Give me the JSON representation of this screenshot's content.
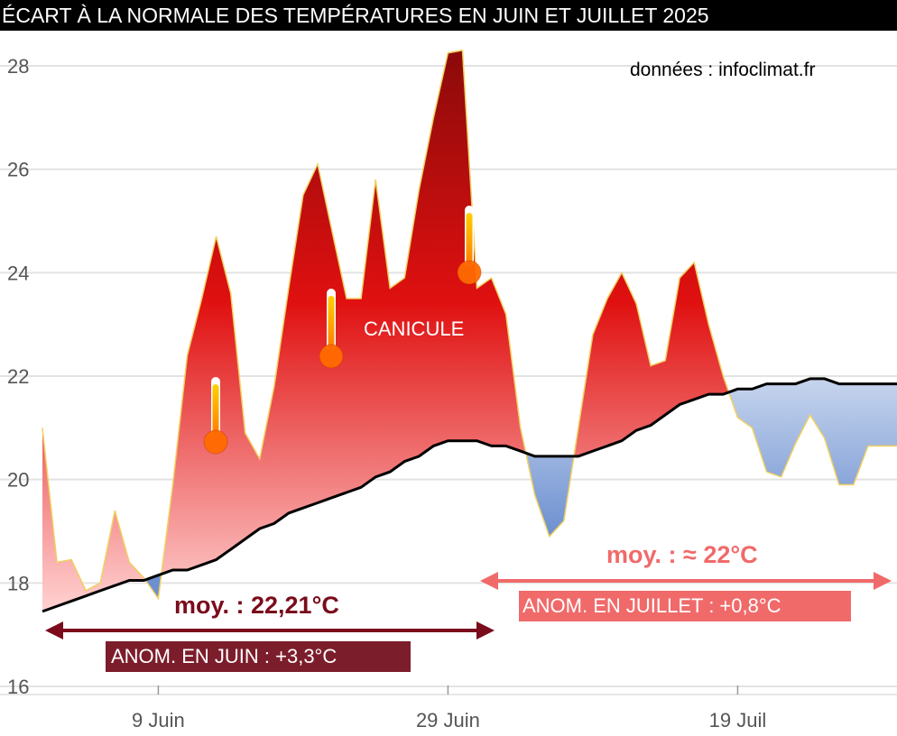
{
  "header": {
    "title": "ÉCART À LA NORMALE DES TEMPÉRATURES EN JUIN ET JUILLET 2025"
  },
  "source_label": "données : infoclimat.fr",
  "annotations": {
    "canicule": "CANICULE",
    "june_avg": "moy. : 22,21°C",
    "june_anomaly": "ANOM. EN JUIN : +3,3°C",
    "july_avg": "moy. : ≈ 22°C",
    "july_anomaly": "ANOM. EN JUILLET : +0,8°C"
  },
  "colors": {
    "hot_dark": "#8b0a0a",
    "hot_mid": "#e01010",
    "hot_light": "#ffd0d0",
    "cold_dark": "#6c8fd0",
    "cold_light": "#c8d6ee",
    "outline": "#f0d060",
    "normal_line": "#000000",
    "june_arrow": "#7a0c1c",
    "july_arrow": "#f06a6a",
    "thermometer_bulb": "#ff6a00"
  },
  "chart_data": {
    "type": "area",
    "title": "ÉCART À LA NORMALE DES TEMPÉRATURES EN JUIN ET JUILLET 2025",
    "xlabel": "",
    "ylabel": "",
    "ylim": [
      16,
      28.6
    ],
    "yticks": [
      16,
      18,
      20,
      22,
      24,
      26,
      28
    ],
    "xticks": [
      {
        "day": 9,
        "label": "9 Juin"
      },
      {
        "day": 29,
        "label": "29 Juin"
      },
      {
        "day": 49,
        "label": "19 Juil"
      }
    ],
    "xlim": [
      1,
      60
    ],
    "grid": true,
    "series": [
      {
        "role": "observed",
        "x": [
          1,
          2,
          3,
          4,
          5,
          6,
          7,
          8,
          9,
          10,
          11,
          12,
          13,
          14,
          15,
          16,
          17,
          18,
          19,
          20,
          21,
          22,
          23,
          24,
          25,
          26,
          27,
          28,
          29,
          30,
          31,
          32,
          33,
          34,
          35,
          36,
          37,
          38,
          39,
          40,
          41,
          42,
          43,
          44,
          45,
          46,
          47,
          48,
          49,
          50,
          51,
          52,
          53,
          54,
          55,
          56,
          57,
          58,
          59,
          60
        ],
        "y": [
          21.0,
          18.4,
          18.45,
          17.85,
          18.0,
          19.4,
          18.4,
          18.1,
          17.7,
          19.9,
          22.4,
          23.5,
          24.7,
          23.6,
          20.9,
          20.4,
          21.8,
          23.7,
          25.5,
          26.1,
          24.8,
          23.5,
          23.5,
          25.8,
          23.7,
          23.9,
          25.6,
          27.0,
          28.25,
          28.3,
          23.7,
          23.9,
          23.2,
          21.0,
          19.7,
          18.9,
          19.2,
          21.0,
          22.8,
          23.5,
          24.0,
          23.4,
          22.2,
          22.3,
          23.9,
          24.2,
          23.0,
          22.0,
          21.2,
          21.0,
          20.15,
          20.05,
          20.7,
          21.25,
          20.8,
          19.9,
          19.9,
          20.65,
          20.65,
          20.65
        ]
      },
      {
        "role": "normal",
        "x": [
          1,
          2,
          3,
          4,
          5,
          6,
          7,
          8,
          9,
          10,
          11,
          12,
          13,
          14,
          15,
          16,
          17,
          18,
          19,
          20,
          21,
          22,
          23,
          24,
          25,
          26,
          27,
          28,
          29,
          30,
          31,
          32,
          33,
          34,
          35,
          36,
          37,
          38,
          39,
          40,
          41,
          42,
          43,
          44,
          45,
          46,
          47,
          48,
          49,
          50,
          51,
          52,
          53,
          54,
          55,
          56,
          57,
          58,
          59,
          60
        ],
        "y": [
          17.45,
          17.55,
          17.65,
          17.75,
          17.85,
          17.95,
          18.05,
          18.05,
          18.15,
          18.25,
          18.25,
          18.35,
          18.45,
          18.65,
          18.85,
          19.05,
          19.15,
          19.35,
          19.45,
          19.55,
          19.65,
          19.75,
          19.85,
          20.05,
          20.15,
          20.35,
          20.45,
          20.65,
          20.75,
          20.75,
          20.75,
          20.65,
          20.65,
          20.55,
          20.45,
          20.45,
          20.45,
          20.45,
          20.55,
          20.65,
          20.75,
          20.95,
          21.05,
          21.25,
          21.45,
          21.55,
          21.65,
          21.65,
          21.75,
          21.75,
          21.85,
          21.85,
          21.85,
          21.95,
          21.95,
          21.85,
          21.85,
          21.85,
          21.85,
          21.85
        ]
      }
    ]
  }
}
